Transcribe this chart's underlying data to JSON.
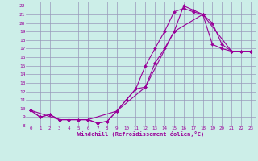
{
  "xlabel": "Windchill (Refroidissement éolien,°C)",
  "bg_color": "#cceee8",
  "grid_color": "#9999bb",
  "line_color": "#990099",
  "xlim": [
    -0.5,
    23.5
  ],
  "ylim": [
    8,
    22.5
  ],
  "xticks": [
    0,
    1,
    2,
    3,
    4,
    5,
    6,
    7,
    8,
    9,
    10,
    11,
    12,
    13,
    14,
    15,
    16,
    17,
    18,
    19,
    20,
    21,
    22,
    23
  ],
  "yticks": [
    8,
    9,
    10,
    11,
    12,
    13,
    14,
    15,
    16,
    17,
    18,
    19,
    20,
    21,
    22
  ],
  "line1_x": [
    0,
    1,
    2,
    3,
    4,
    5,
    6,
    7,
    8,
    9,
    10,
    11,
    12,
    13,
    14,
    15,
    16,
    17,
    18,
    19,
    20,
    21,
    22,
    23
  ],
  "line1_y": [
    9.8,
    9.0,
    9.3,
    8.7,
    8.7,
    8.7,
    8.7,
    8.3,
    8.5,
    9.7,
    11.0,
    12.3,
    15.0,
    17.0,
    19.0,
    21.3,
    21.7,
    21.3,
    21.0,
    17.5,
    17.0,
    16.7,
    16.7,
    16.7
  ],
  "line2_x": [
    0,
    1,
    2,
    3,
    4,
    5,
    6,
    7,
    8,
    9,
    10,
    11,
    12,
    13,
    14,
    15,
    16,
    17,
    18,
    19,
    20,
    21,
    22,
    23
  ],
  "line2_y": [
    9.8,
    9.0,
    9.3,
    8.7,
    8.7,
    8.7,
    8.7,
    8.3,
    8.5,
    9.7,
    11.0,
    12.3,
    12.5,
    15.3,
    17.0,
    19.0,
    22.0,
    21.5,
    21.0,
    20.0,
    17.5,
    16.7,
    16.7,
    16.7
  ],
  "line3_x": [
    0,
    3,
    6,
    9,
    12,
    15,
    18,
    21,
    23
  ],
  "line3_y": [
    9.8,
    8.7,
    8.7,
    9.7,
    12.5,
    19.0,
    21.0,
    16.7,
    16.7
  ]
}
